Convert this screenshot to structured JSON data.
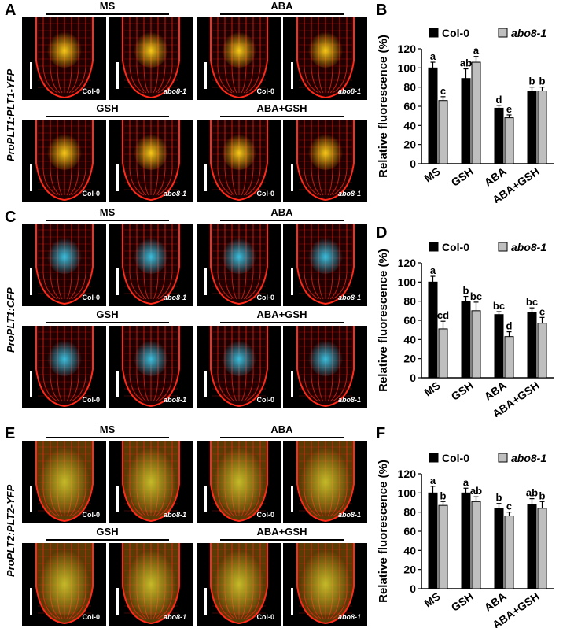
{
  "conditions": [
    "MS",
    "ABA",
    "GSH",
    "ABA+GSH"
  ],
  "genotypes": [
    "Col-0",
    "abo8-1"
  ],
  "panels": [
    {
      "id": "A",
      "label": "A",
      "reporter": "ProPLT1:PLT1-YFP",
      "signal": "yellow"
    },
    {
      "id": "C",
      "label": "C",
      "reporter": "ProPLT1:CFP",
      "signal": "cyan"
    },
    {
      "id": "E",
      "label": "E",
      "reporter": "ProPLT2:PLT2-YFP",
      "signal": "yellowgreen"
    }
  ],
  "colors": {
    "col0": "#000000",
    "abo8": "#bfbfbf",
    "membrane": "#ff2a1a",
    "yfp": "#ffd21a",
    "cfp": "#39c6e6",
    "pltgreen": "#c9c02a"
  },
  "chart_data": [
    {
      "label": "B",
      "type": "bar",
      "categories": [
        "MS",
        "GSH",
        "ABA",
        "ABA+GSH"
      ],
      "series": [
        {
          "name": "Col-0",
          "values": [
            100,
            89,
            58,
            76
          ],
          "errors": [
            6,
            10,
            3,
            4
          ],
          "letters": [
            "a",
            "ab",
            "d",
            "b"
          ]
        },
        {
          "name": "abo8-1",
          "values": [
            66,
            106,
            48,
            76
          ],
          "errors": [
            4,
            6,
            3,
            4
          ],
          "letters": [
            "c",
            "a",
            "e",
            "b"
          ]
        }
      ],
      "ylabel": "Relative fluorescence (%)",
      "ylim": [
        0,
        120
      ],
      "yticks": [
        0,
        20,
        40,
        60,
        80,
        100,
        120
      ],
      "legend": "top"
    },
    {
      "label": "D",
      "type": "bar",
      "categories": [
        "MS",
        "GSH",
        "ABA",
        "ABA+GSH"
      ],
      "series": [
        {
          "name": "Col-0",
          "values": [
            100,
            80,
            66,
            68
          ],
          "errors": [
            6,
            5,
            3,
            5
          ],
          "letters": [
            "a",
            "b",
            "bc",
            "bc"
          ]
        },
        {
          "name": "abo8-1",
          "values": [
            51,
            70,
            43,
            57
          ],
          "errors": [
            8,
            9,
            5,
            6
          ],
          "letters": [
            "cd",
            "bc",
            "d",
            "c"
          ]
        }
      ],
      "ylabel": "Relative fluorescence (%)",
      "ylim": [
        0,
        120
      ],
      "yticks": [
        0,
        20,
        40,
        60,
        80,
        100,
        120
      ],
      "legend": "top"
    },
    {
      "label": "F",
      "type": "bar",
      "categories": [
        "MS",
        "GSH",
        "ABA",
        "ABA+GSH"
      ],
      "series": [
        {
          "name": "Col-0",
          "values": [
            100,
            100,
            84,
            88
          ],
          "errors": [
            7,
            5,
            5,
            6
          ],
          "letters": [
            "a",
            "a",
            "b",
            "ab"
          ]
        },
        {
          "name": "abo8-1",
          "values": [
            87,
            91,
            76,
            84
          ],
          "errors": [
            4,
            5,
            4,
            7
          ],
          "letters": [
            "b",
            "ab",
            "c",
            "b"
          ]
        }
      ],
      "ylabel": "Relative fluorescence (%)",
      "ylim": [
        0,
        120
      ],
      "yticks": [
        0,
        20,
        40,
        60,
        80,
        100,
        120
      ],
      "legend": "top"
    }
  ]
}
